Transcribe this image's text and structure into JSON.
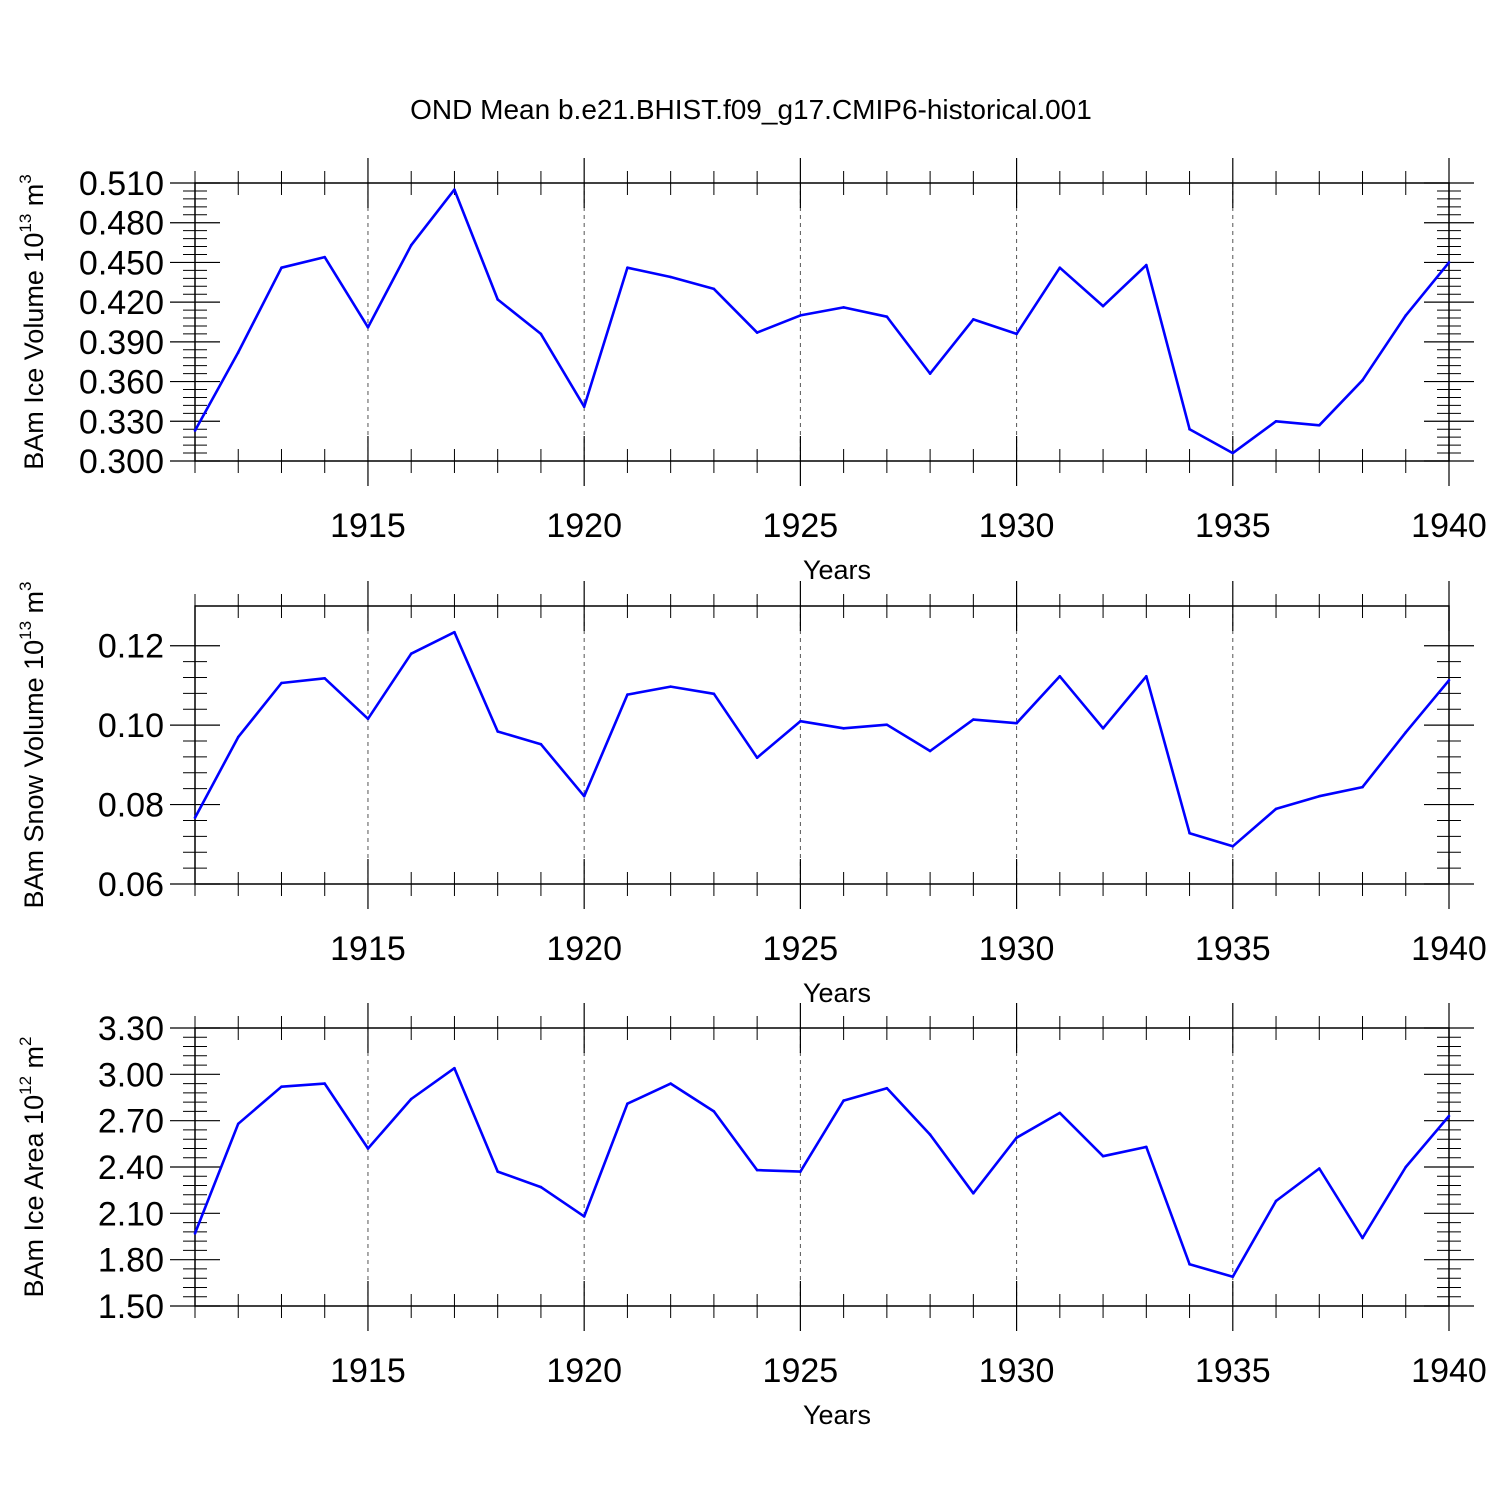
{
  "title": "OND Mean b.e21.BHIST.f09_g17.CMIP6-historical.001",
  "line_color": "#0000ff",
  "chart_data": [
    {
      "type": "line",
      "x": [
        1911,
        1912,
        1913,
        1914,
        1915,
        1916,
        1917,
        1918,
        1919,
        1920,
        1921,
        1922,
        1923,
        1924,
        1925,
        1926,
        1927,
        1928,
        1929,
        1930,
        1931,
        1932,
        1933,
        1934,
        1935,
        1936,
        1937,
        1938,
        1939,
        1940
      ],
      "xlim": [
        1911,
        1940
      ],
      "xticks": [
        1915,
        1920,
        1925,
        1930,
        1935,
        1940
      ],
      "xtick_labels": [
        "1915",
        "1920",
        "1925",
        "1930",
        "1935",
        "1940"
      ],
      "xlabel": "Years",
      "ylabel": {
        "main": "BAm Ice Volume 10",
        "exp": "13",
        "unit": " m",
        "unit_exp": "3"
      },
      "ylim": [
        0.3,
        0.51
      ],
      "yticks": [
        0.3,
        0.33,
        0.36,
        0.39,
        0.42,
        0.45,
        0.48,
        0.51
      ],
      "ytick_labels": [
        "0.300",
        "0.330",
        "0.360",
        "0.390",
        "0.420",
        "0.450",
        "0.480",
        "0.510"
      ],
      "series": [
        {
          "values": [
            0.323,
            0.382,
            0.446,
            0.454,
            0.401,
            0.463,
            0.505,
            0.422,
            0.396,
            0.341,
            0.446,
            0.439,
            0.43,
            0.397,
            0.41,
            0.416,
            0.409,
            0.366,
            0.407,
            0.396,
            0.446,
            0.417,
            0.448,
            0.324,
            0.306,
            0.33,
            0.327,
            0.361,
            0.41,
            0.45
          ]
        }
      ],
      "grid": "dashed vertical at major x ticks"
    },
    {
      "type": "line",
      "x": [
        1911,
        1912,
        1913,
        1914,
        1915,
        1916,
        1917,
        1918,
        1919,
        1920,
        1921,
        1922,
        1923,
        1924,
        1925,
        1926,
        1927,
        1928,
        1929,
        1930,
        1931,
        1932,
        1933,
        1934,
        1935,
        1936,
        1937,
        1938,
        1939,
        1940
      ],
      "xlim": [
        1911,
        1940
      ],
      "xticks": [
        1915,
        1920,
        1925,
        1930,
        1935,
        1940
      ],
      "xtick_labels": [
        "1915",
        "1920",
        "1925",
        "1930",
        "1935",
        "1940"
      ],
      "xlabel": "Years",
      "ylabel": {
        "main": "BAm Snow Volume 10",
        "exp": "13",
        "unit": " m",
        "unit_exp": "3"
      },
      "ylim": [
        0.06,
        0.13
      ],
      "yticks": [
        0.06,
        0.08,
        0.1,
        0.12
      ],
      "ytick_labels": [
        "0.06",
        "0.08",
        "0.10",
        "0.12"
      ],
      "series": [
        {
          "values": [
            0.0767,
            0.097,
            0.1106,
            0.1118,
            0.1016,
            0.118,
            0.1234,
            0.0984,
            0.0952,
            0.0821,
            0.1077,
            0.1097,
            0.1079,
            0.0918,
            0.101,
            0.0992,
            0.1001,
            0.0935,
            0.1014,
            0.1005,
            0.1123,
            0.0992,
            0.1123,
            0.0728,
            0.0695,
            0.0789,
            0.0821,
            0.0844,
            0.0982,
            0.1113
          ]
        }
      ],
      "grid": "dashed vertical at major x ticks"
    },
    {
      "type": "line",
      "x": [
        1911,
        1912,
        1913,
        1914,
        1915,
        1916,
        1917,
        1918,
        1919,
        1920,
        1921,
        1922,
        1923,
        1924,
        1925,
        1926,
        1927,
        1928,
        1929,
        1930,
        1931,
        1932,
        1933,
        1934,
        1935,
        1936,
        1937,
        1938,
        1939,
        1940
      ],
      "xlim": [
        1911,
        1940
      ],
      "xticks": [
        1915,
        1920,
        1925,
        1930,
        1935,
        1940
      ],
      "xtick_labels": [
        "1915",
        "1920",
        "1925",
        "1930",
        "1935",
        "1940"
      ],
      "xlabel": "Years",
      "ylabel": {
        "main": "BAm Ice Area 10",
        "exp": "12",
        "unit": " m",
        "unit_exp": "2"
      },
      "ylim": [
        1.5,
        3.3
      ],
      "yticks": [
        1.5,
        1.8,
        2.1,
        2.4,
        2.7,
        3.0,
        3.3
      ],
      "ytick_labels": [
        "1.50",
        "1.80",
        "2.10",
        "2.40",
        "2.70",
        "3.00",
        "3.30"
      ],
      "series": [
        {
          "values": [
            1.97,
            2.68,
            2.92,
            2.94,
            2.52,
            2.84,
            3.04,
            2.37,
            2.27,
            2.08,
            2.81,
            2.94,
            2.76,
            2.38,
            2.37,
            2.83,
            2.91,
            2.61,
            2.23,
            2.59,
            2.75,
            2.47,
            2.53,
            1.77,
            1.69,
            2.18,
            2.39,
            1.94,
            2.4,
            2.73
          ]
        }
      ],
      "grid": "dashed vertical at major x ticks"
    }
  ]
}
